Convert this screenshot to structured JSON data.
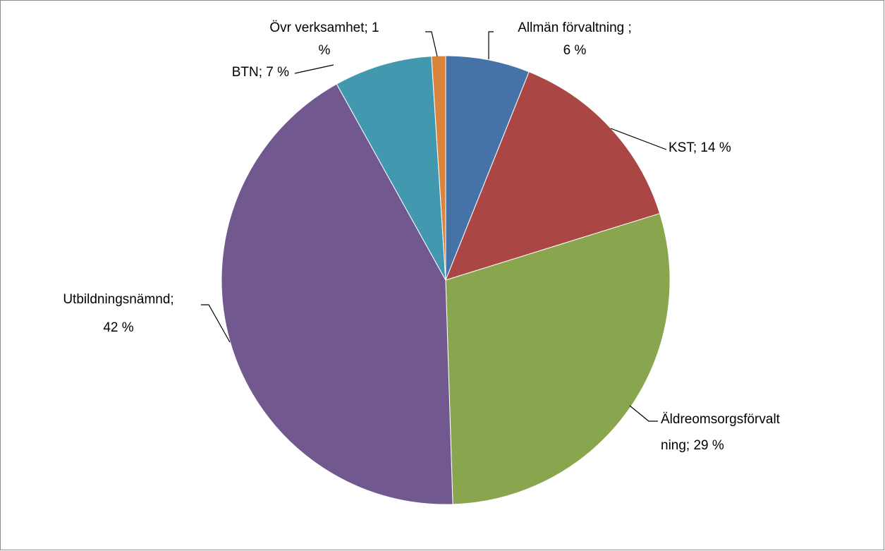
{
  "chart_data": {
    "type": "pie",
    "values": [
      6,
      14,
      29,
      42,
      7,
      1
    ],
    "labels": [
      [
        "Allmän förvaltning ;",
        "6 %"
      ],
      [
        "KST; 14 %"
      ],
      [
        "Äldreomsorgsförvalt",
        "ning; 29 %"
      ],
      [
        "Utbildningsnämnd;",
        "42 %"
      ],
      [
        "BTN; 7 %"
      ],
      [
        "Övr verksamhet; 1",
        "%"
      ]
    ],
    "colors": [
      "#4572a7",
      "#aa4643",
      "#89a54e",
      "#71588f",
      "#4198af",
      "#db843d"
    ]
  }
}
